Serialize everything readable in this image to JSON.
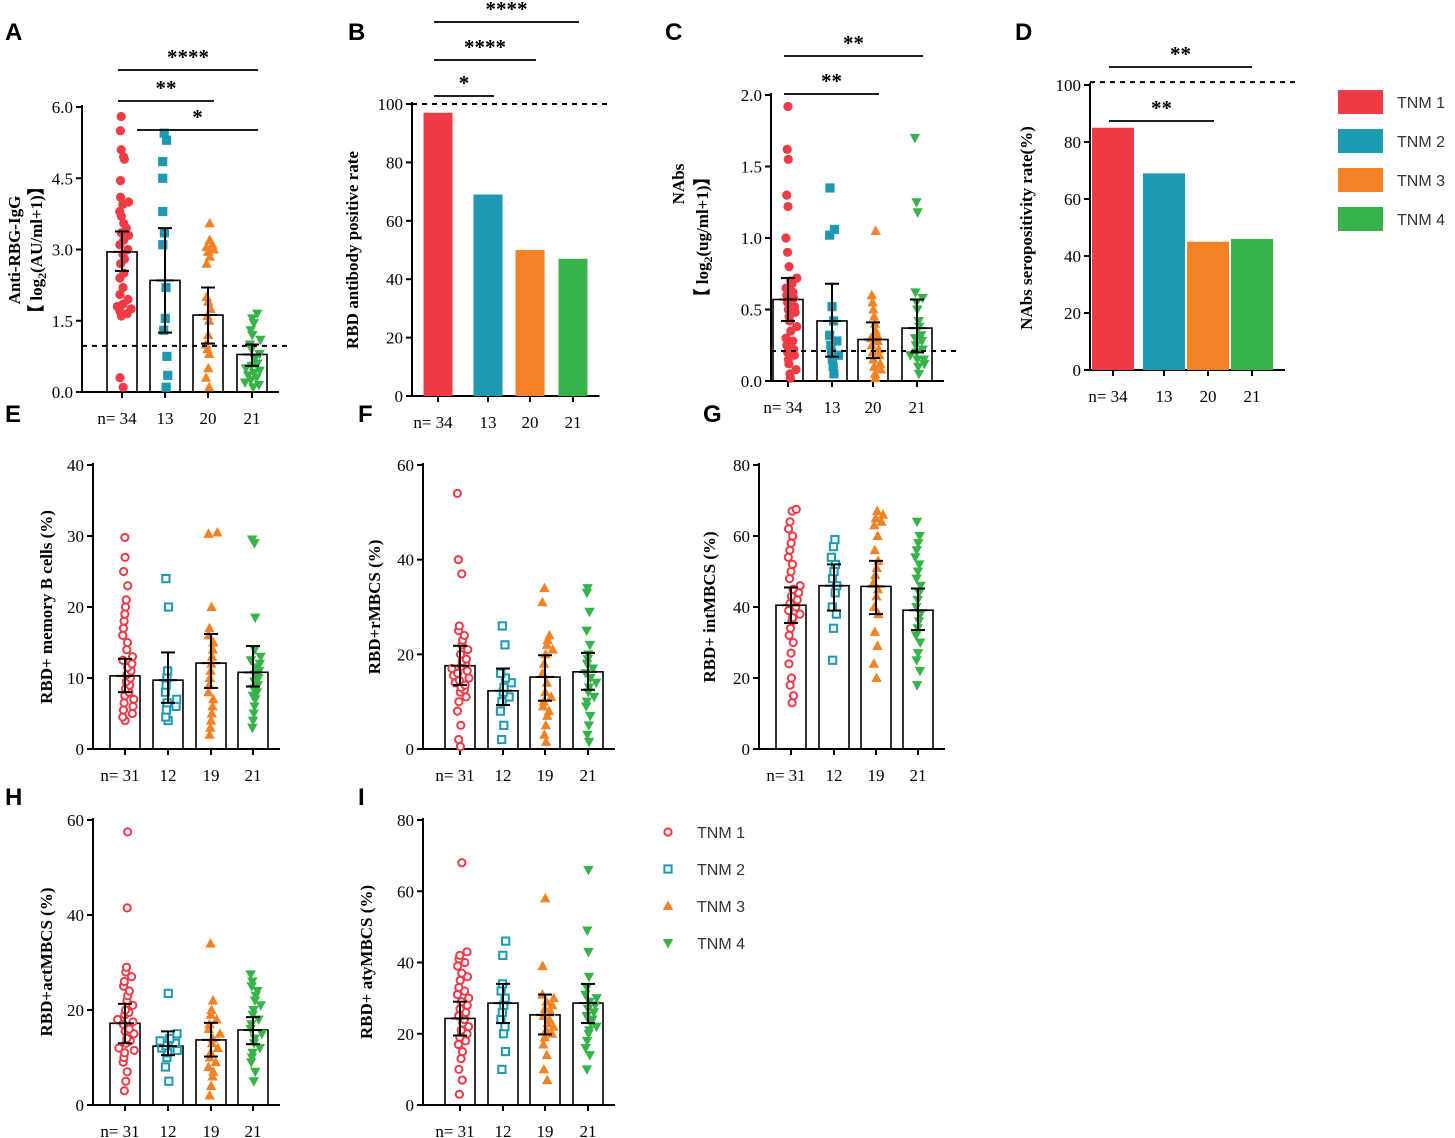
{
  "figure": {
    "colors": {
      "tnm1": "#ee3b45",
      "tnm2": "#1d9ab2",
      "tnm3": "#f28224",
      "tnm4": "#37b349"
    },
    "legend_bars": {
      "items": [
        "TNM 1",
        "TNM 2",
        "TNM 3",
        "TNM 4"
      ]
    },
    "legend_symbols": {
      "items": [
        "TNM 1",
        "TNM 2",
        "TNM 3",
        "TNM 4"
      ]
    }
  },
  "chart_data": [
    {
      "panel": "A",
      "type": "scatter-bar",
      "marker": "filled",
      "ylabel": "Anti-RBG-IgG",
      "ylabel2": "【 log2(AU/ml+1)】",
      "ylim": [
        0,
        6
      ],
      "yticks": [
        "0.0",
        "1.5",
        "3.0",
        "4.5",
        "6.0"
      ],
      "categories": [
        "n= 34",
        "13",
        "20",
        "21"
      ],
      "means": [
        2.95,
        2.35,
        1.62,
        0.79
      ],
      "errors": [
        [
          2.55,
          3.38
        ],
        [
          1.25,
          3.45
        ],
        [
          1.02,
          2.2
        ],
        [
          0.55,
          1.0
        ]
      ],
      "threshold": 0.97,
      "points": [
        [
          0.1,
          0.3,
          1.6,
          1.65,
          1.7,
          1.75,
          1.8,
          1.85,
          1.95,
          2.05,
          2.2,
          2.4,
          2.5,
          2.7,
          2.8,
          2.9,
          3.0,
          3.1,
          3.2,
          3.35,
          3.45,
          3.55,
          3.7,
          3.8,
          3.95,
          4.0,
          4.1,
          4.45,
          4.9,
          4.95,
          5.1,
          5.5,
          5.8,
          3.3
        ],
        [
          0.1,
          0.35,
          0.75,
          1.3,
          1.55,
          2.2,
          3.1,
          3.35,
          3.8,
          4.5,
          4.85,
          5.3,
          5.45
        ],
        [
          0.1,
          0.3,
          0.5,
          0.8,
          0.9,
          1.0,
          1.2,
          1.5,
          1.6,
          1.75,
          2.0,
          2.7,
          2.85,
          2.95,
          3.0,
          3.05,
          3.1,
          3.2,
          3.55,
          1.9
        ],
        [
          0.1,
          0.15,
          0.2,
          0.25,
          0.3,
          0.35,
          0.4,
          0.45,
          0.5,
          0.55,
          0.6,
          0.7,
          0.8,
          0.9,
          1.0,
          1.1,
          1.2,
          1.3,
          1.45,
          1.55,
          1.65
        ]
      ],
      "sig": [
        {
          "from": 0,
          "to": 3,
          "label": "****"
        },
        {
          "from": 0,
          "to": 2,
          "label": "**"
        },
        {
          "from": 1,
          "to": 3,
          "label": "*"
        }
      ]
    },
    {
      "panel": "B",
      "type": "bar",
      "ylabel": "RBD antibody positive rate",
      "ylim": [
        0,
        100
      ],
      "yticks": [
        "0",
        "20",
        "40",
        "60",
        "80",
        "100"
      ],
      "categories": [
        "n= 34",
        "13",
        "20",
        "21"
      ],
      "values": [
        97,
        69,
        50,
        47
      ],
      "threshold": 100,
      "sig": [
        {
          "from": 0,
          "to": 1,
          "label": "*"
        },
        {
          "from": 0,
          "to": 2,
          "label": "****"
        },
        {
          "from": 0,
          "to": 3,
          "label": "****"
        }
      ]
    },
    {
      "panel": "C",
      "type": "scatter-bar",
      "marker": "filled",
      "ylabel": "NAbs",
      "ylabel2": "【 log2(ug/ml+1)】",
      "ylim": [
        0,
        2
      ],
      "yticks": [
        "0.0",
        "0.5",
        "1.0",
        "1.5",
        "2.0"
      ],
      "categories": [
        "n= 34",
        "13",
        "20",
        "21"
      ],
      "means": [
        0.57,
        0.42,
        0.29,
        0.37
      ],
      "errors": [
        [
          0.42,
          0.72
        ],
        [
          0.17,
          0.68
        ],
        [
          0.16,
          0.41
        ],
        [
          0.2,
          0.57
        ]
      ],
      "threshold": 0.21,
      "points": [
        [
          0.02,
          0.05,
          0.08,
          0.12,
          0.15,
          0.18,
          0.2,
          0.22,
          0.25,
          0.28,
          0.3,
          0.35,
          0.38,
          0.42,
          0.45,
          0.48,
          0.5,
          0.52,
          0.55,
          0.58,
          0.6,
          0.62,
          0.65,
          0.68,
          0.7,
          0.72,
          0.8,
          0.9,
          1.0,
          1.22,
          1.3,
          1.55,
          1.62,
          1.92
        ],
        [
          0.05,
          0.1,
          0.15,
          0.18,
          0.2,
          0.25,
          0.32,
          0.42,
          0.52,
          1.02,
          1.06,
          1.35,
          0.28
        ],
        [
          0.02,
          0.05,
          0.08,
          0.1,
          0.12,
          0.15,
          0.18,
          0.2,
          0.22,
          0.25,
          0.28,
          0.3,
          0.32,
          0.35,
          0.4,
          0.45,
          0.5,
          0.55,
          0.6,
          1.05
        ],
        [
          0.05,
          0.1,
          0.12,
          0.15,
          0.18,
          0.2,
          0.22,
          0.25,
          0.28,
          0.3,
          0.32,
          0.38,
          0.42,
          0.5,
          0.55,
          0.58,
          0.62,
          1.18,
          1.25,
          1.7,
          0.15
        ]
      ],
      "sig": [
        {
          "from": 0,
          "to": 2,
          "label": "**"
        },
        {
          "from": 0,
          "to": 3,
          "label": "**"
        }
      ]
    },
    {
      "panel": "D",
      "type": "bar",
      "ylabel": "NAbs seropositivity rate(%)",
      "ylim": [
        0,
        100
      ],
      "yticks": [
        "0",
        "20",
        "40",
        "60",
        "80",
        "100"
      ],
      "categories": [
        "n= 34",
        "13",
        "20",
        "21"
      ],
      "values": [
        85,
        69,
        45,
        46
      ],
      "threshold": 101,
      "sig": [
        {
          "from": 0,
          "to": 2,
          "label": "**"
        },
        {
          "from": 0,
          "to": 3,
          "label": "**"
        }
      ]
    },
    {
      "panel": "E",
      "type": "scatter-bar",
      "marker": "open",
      "ylabel": "RBD+ memory B cells (%)",
      "ylim": [
        0,
        40
      ],
      "yticks": [
        "0",
        "10",
        "20",
        "30",
        "40"
      ],
      "categories": [
        "n= 31",
        "12",
        "19",
        "21"
      ],
      "means": [
        10.3,
        9.7,
        12.1,
        10.8
      ],
      "errors": [
        [
          8.0,
          12.7
        ],
        [
          6.5,
          13.6
        ],
        [
          8.6,
          16.2
        ],
        [
          8.8,
          14.5
        ]
      ],
      "points": [
        [
          4,
          4.5,
          5,
          5.5,
          6,
          6.5,
          7,
          7.5,
          8,
          8.5,
          9,
          9.5,
          10,
          10.5,
          11,
          11.5,
          12,
          12.5,
          13,
          14,
          15,
          16,
          17,
          18,
          19,
          20,
          21,
          23,
          25,
          27,
          29.8
        ],
        [
          4,
          4.5,
          5.5,
          6,
          6.5,
          7,
          8,
          9,
          10,
          11,
          20,
          24
        ],
        [
          2,
          3,
          4,
          5,
          6,
          7,
          8,
          9,
          10,
          11,
          12,
          13,
          14,
          15,
          16,
          17,
          20,
          30.3,
          30.5
        ],
        [
          3,
          4,
          5,
          6,
          7,
          7.5,
          8,
          8.5,
          9,
          9.5,
          10,
          10.5,
          11,
          11.5,
          12,
          12.5,
          13,
          14,
          18.5,
          29,
          29.5
        ]
      ]
    },
    {
      "panel": "F",
      "type": "scatter-bar",
      "marker": "open",
      "ylabel": "RBD+rMBCS (%)",
      "ylim": [
        0,
        60
      ],
      "yticks": [
        "0",
        "20",
        "40",
        "60"
      ],
      "categories": [
        "n= 31",
        "12",
        "19",
        "21"
      ],
      "means": [
        17.6,
        12.3,
        15.2,
        16.3
      ],
      "errors": [
        [
          13.5,
          21.8
        ],
        [
          9.3,
          17.0
        ],
        [
          10.2,
          19.8
        ],
        [
          12.5,
          20.3
        ]
      ],
      "points": [
        [
          0.5,
          2,
          5,
          8,
          10,
          11,
          12,
          13,
          14,
          15,
          16,
          17,
          18,
          19,
          20,
          21,
          22,
          23,
          24,
          25,
          26,
          12.5,
          13.5,
          14.5,
          15.5,
          16.5,
          17.5,
          18.5,
          37,
          40,
          54
        ],
        [
          2,
          5,
          8,
          10,
          11,
          12,
          13,
          14,
          15,
          16,
          22,
          26
        ],
        [
          1.5,
          3,
          5,
          7,
          8,
          9,
          10,
          11,
          12,
          14,
          16,
          18,
          20,
          21,
          22,
          23,
          24,
          31,
          34
        ],
        [
          1.5,
          3,
          5,
          7,
          9,
          10,
          11,
          12,
          13,
          14,
          15,
          16,
          17,
          18,
          19,
          20,
          22,
          25,
          29,
          33,
          34
        ]
      ]
    },
    {
      "panel": "G",
      "type": "scatter-bar",
      "marker": "open",
      "ylabel": "RBD+ intMBCS (%)",
      "ylim": [
        0,
        80
      ],
      "yticks": [
        "0",
        "20",
        "40",
        "60",
        "80"
      ],
      "categories": [
        "n= 31",
        "12",
        "19",
        "21"
      ],
      "means": [
        40.5,
        46.0,
        45.8,
        39.1
      ],
      "errors": [
        [
          35.5,
          45.5
        ],
        [
          39.0,
          52.0
        ],
        [
          38.0,
          53.0
        ],
        [
          33.5,
          45.2
        ]
      ],
      "points": [
        [
          13,
          15,
          18,
          20,
          24,
          27,
          30,
          32,
          34,
          36,
          37,
          38,
          39,
          40,
          41,
          42,
          43,
          44,
          45,
          46,
          48,
          50,
          52,
          54,
          56,
          58,
          60,
          62,
          64,
          67,
          67.5
        ],
        [
          25,
          34,
          38,
          40,
          44,
          46,
          48,
          50,
          52,
          54,
          57,
          59
        ],
        [
          20,
          24,
          29,
          33,
          38,
          40,
          43,
          45,
          47,
          49,
          51,
          53,
          56,
          60,
          63,
          64,
          65,
          66,
          67
        ],
        [
          18,
          22,
          25,
          27,
          30,
          32,
          34,
          36,
          38,
          40,
          42,
          44,
          46,
          48,
          50,
          52,
          54,
          56,
          58,
          60,
          64
        ]
      ]
    },
    {
      "panel": "H",
      "type": "scatter-bar",
      "marker": "open",
      "ylabel": "RBD+actMBCS (%)",
      "ylim": [
        0,
        60
      ],
      "yticks": [
        "0",
        "20",
        "40",
        "60"
      ],
      "categories": [
        "n= 31",
        "12",
        "19",
        "21"
      ],
      "means": [
        17.2,
        12.4,
        13.7,
        15.8
      ],
      "errors": [
        [
          13.0,
          21.3
        ],
        [
          10.5,
          15.5
        ],
        [
          10.2,
          17.3
        ],
        [
          12.8,
          18.5
        ]
      ],
      "points": [
        [
          3,
          5,
          7,
          9,
          10,
          11,
          12,
          13,
          14,
          15,
          16,
          17,
          18,
          19,
          20,
          21,
          22,
          23,
          24,
          25,
          26,
          27,
          28,
          29,
          11.5,
          13.5,
          15.5,
          17.5,
          41.5,
          57.5,
          19.5
        ],
        [
          5,
          8,
          10,
          11,
          11.5,
          12,
          12.5,
          13,
          13.5,
          14,
          15,
          23.5
        ],
        [
          2,
          4,
          6,
          7,
          8,
          9,
          10,
          11,
          12,
          13,
          14,
          15,
          16,
          17,
          18,
          19,
          20,
          22,
          34
        ],
        [
          5,
          7,
          9,
          10,
          11,
          12,
          13,
          14,
          15,
          16,
          17,
          18,
          19,
          20,
          21,
          22,
          23,
          24,
          25,
          26,
          27.5
        ]
      ]
    },
    {
      "panel": "I",
      "type": "scatter-bar",
      "marker": "open",
      "ylabel": "RBD+ atyMBCS (%)",
      "ylim": [
        0,
        80
      ],
      "yticks": [
        "0",
        "20",
        "40",
        "60",
        "80"
      ],
      "categories": [
        "n= 31",
        "12",
        "19",
        "21"
      ],
      "means": [
        24.3,
        28.6,
        25.3,
        28.6
      ],
      "errors": [
        [
          19.5,
          29.0
        ],
        [
          23.0,
          34.0
        ],
        [
          19.8,
          31.0
        ],
        [
          23.0,
          34.0
        ]
      ],
      "points": [
        [
          3,
          7,
          10,
          13,
          15,
          17,
          18,
          19,
          20,
          21,
          22,
          23,
          24,
          25,
          26,
          27,
          28,
          29,
          30,
          31,
          32,
          33,
          35,
          37,
          39,
          40,
          41,
          42,
          43,
          68,
          36
        ],
        [
          10,
          15,
          20,
          22,
          24,
          26,
          28,
          30,
          32,
          34,
          42,
          46
        ],
        [
          7,
          10,
          14,
          17,
          19,
          20,
          21,
          22,
          23,
          24,
          25,
          26,
          27,
          28,
          29,
          30,
          31,
          39,
          58
        ],
        [
          10,
          14,
          16,
          18,
          20,
          21,
          22,
          23,
          24,
          25,
          26,
          27,
          28,
          29,
          30,
          31,
          33,
          36,
          43,
          49,
          66
        ]
      ]
    }
  ]
}
